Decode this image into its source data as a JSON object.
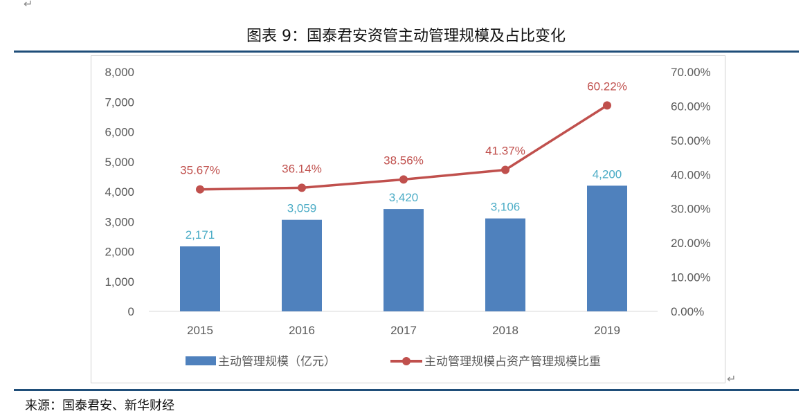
{
  "title": "图表 9：国泰君安资管主动管理规模及占比变化",
  "source": "来源：国泰君安、新华财经",
  "colors": {
    "bar": "#4F81BD",
    "line": "#C0504D",
    "bar_label": "#4BACC6",
    "rule": "#1F4E79"
  },
  "chart_data": {
    "type": "bar+line",
    "categories": [
      "2015",
      "2016",
      "2017",
      "2018",
      "2019"
    ],
    "series": [
      {
        "name": "主动管理规模（亿元）",
        "type": "bar",
        "axis": "left",
        "values": [
          2171,
          3059,
          3420,
          3106,
          4200
        ],
        "labels": [
          "2,171",
          "3,059",
          "3,420",
          "3,106",
          "4,200"
        ]
      },
      {
        "name": "主动管理规模占资产管理规模比重",
        "type": "line",
        "axis": "right",
        "values": [
          35.67,
          36.14,
          38.56,
          41.37,
          60.22
        ],
        "labels": [
          "35.67%",
          "36.14%",
          "38.56%",
          "41.37%",
          "60.22%"
        ]
      }
    ],
    "left_axis": {
      "range": [
        0,
        8000
      ],
      "ticks": [
        "0",
        "1,000",
        "2,000",
        "3,000",
        "4,000",
        "5,000",
        "6,000",
        "7,000",
        "8,000"
      ]
    },
    "right_axis": {
      "range": [
        0,
        70
      ],
      "ticks": [
        "0.00%",
        "10.00%",
        "20.00%",
        "30.00%",
        "40.00%",
        "50.00%",
        "60.00%",
        "70.00%"
      ]
    },
    "legend": "bottom",
    "grid": false
  }
}
